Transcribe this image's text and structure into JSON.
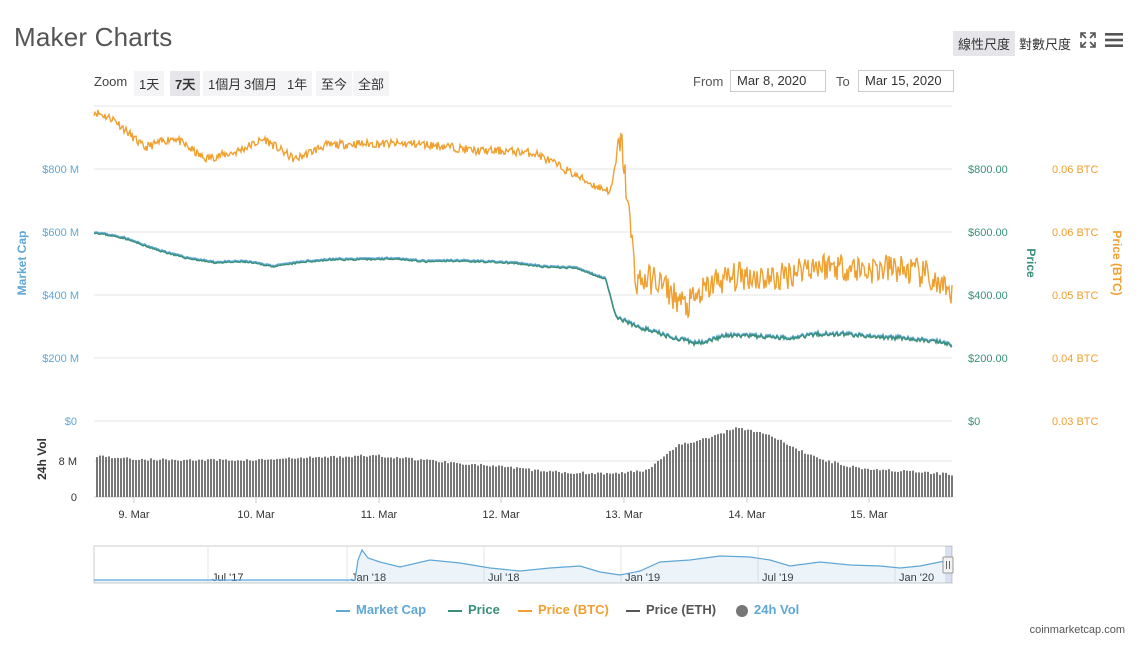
{
  "header": {
    "title": "Maker Charts",
    "scale_linear": "線性尺度",
    "scale_log": "對數尺度",
    "fullscreen_icon": "fullscreen-icon",
    "menu_icon": "hamburger-menu-icon"
  },
  "zoom": {
    "label": "Zoom",
    "buttons": [
      "1天",
      "7天",
      "1個月",
      "3個月",
      "1年",
      "至今",
      "全部"
    ],
    "active": "7天"
  },
  "range": {
    "from_label": "From",
    "from_value": "Mar 8, 2020",
    "to_label": "To",
    "to_value": "Mar 15, 2020"
  },
  "colors": {
    "market_cap": "#5fa7d6",
    "price": "#3a8f79",
    "price_btc": "#f0a030",
    "price_eth": "#555555",
    "volume": "#777777"
  },
  "chart_data": {
    "type": "line",
    "x_axis": {
      "ticks": [
        "9. Mar",
        "10. Mar",
        "11. Mar",
        "12. Mar",
        "13. Mar",
        "14. Mar",
        "15. Mar"
      ],
      "range": [
        "2020-03-08 16:00",
        "2020-03-15 19:00"
      ]
    },
    "y_axes": {
      "market_cap": {
        "title": "Market Cap",
        "ticks": [
          "$200 M",
          "$400 M",
          "$600 M",
          "$800 M"
        ],
        "range": [
          0,
          1000
        ]
      },
      "price": {
        "title": "Price",
        "ticks": [
          "$0",
          "$200.00",
          "$400.00",
          "$600.00",
          "$800.00"
        ],
        "range": [
          0,
          1000
        ]
      },
      "price_btc": {
        "title": "Price (BTC)",
        "ticks": [
          "0.03 BTC",
          "0.04 BTC",
          "0.05 BTC",
          "0.06 BTC",
          "0.06 BTC"
        ],
        "range": [
          0.03,
          0.07
        ]
      },
      "volume": {
        "title": "24h Vol",
        "ticks": [
          "0",
          "8 M",
          "$0"
        ],
        "range": [
          0,
          20
        ]
      }
    },
    "series": [
      {
        "name": "Price",
        "unit": "USD",
        "x": [
          "2020-03-08 16:00",
          "2020-03-08 22:00",
          "2020-03-09 04:00",
          "2020-03-09 10:00",
          "2020-03-09 16:00",
          "2020-03-09 22:00",
          "2020-03-10 04:00",
          "2020-03-10 10:00",
          "2020-03-10 16:00",
          "2020-03-10 22:00",
          "2020-03-11 04:00",
          "2020-03-11 10:00",
          "2020-03-11 16:00",
          "2020-03-11 22:00",
          "2020-03-12 04:00",
          "2020-03-12 10:00",
          "2020-03-12 16:00",
          "2020-03-12 22:00",
          "2020-03-13 00:00",
          "2020-03-13 04:00",
          "2020-03-13 10:00",
          "2020-03-13 16:00",
          "2020-03-13 22:00",
          "2020-03-14 04:00",
          "2020-03-14 10:00",
          "2020-03-14 16:00",
          "2020-03-14 22:00",
          "2020-03-15 04:00",
          "2020-03-15 10:00",
          "2020-03-15 16:00",
          "2020-03-15 19:00"
        ],
        "y": [
          598,
          580,
          545,
          518,
          502,
          505,
          490,
          505,
          512,
          512,
          515,
          505,
          508,
          505,
          500,
          488,
          485,
          450,
          330,
          300,
          270,
          245,
          270,
          268,
          262,
          275,
          275,
          265,
          262,
          250,
          240
        ]
      },
      {
        "name": "Market Cap",
        "unit": "USD M",
        "x": [
          "2020-03-08 16:00",
          "2020-03-08 22:00",
          "2020-03-09 04:00",
          "2020-03-09 10:00",
          "2020-03-09 16:00",
          "2020-03-09 22:00",
          "2020-03-10 04:00",
          "2020-03-10 10:00",
          "2020-03-10 16:00",
          "2020-03-10 22:00",
          "2020-03-11 04:00",
          "2020-03-11 10:00",
          "2020-03-11 16:00",
          "2020-03-11 22:00",
          "2020-03-12 04:00",
          "2020-03-12 10:00",
          "2020-03-12 16:00",
          "2020-03-12 22:00",
          "2020-03-13 00:00",
          "2020-03-13 04:00",
          "2020-03-13 10:00",
          "2020-03-13 16:00",
          "2020-03-13 22:00",
          "2020-03-14 04:00",
          "2020-03-14 10:00",
          "2020-03-14 16:00",
          "2020-03-14 22:00",
          "2020-03-15 04:00",
          "2020-03-15 10:00",
          "2020-03-15 16:00",
          "2020-03-15 19:00"
        ],
        "y": [
          602,
          584,
          549,
          522,
          506,
          509,
          494,
          509,
          516,
          516,
          519,
          509,
          512,
          509,
          504,
          492,
          489,
          454,
          334,
          304,
          274,
          249,
          274,
          272,
          266,
          279,
          279,
          269,
          266,
          254,
          244
        ]
      },
      {
        "name": "Price (BTC)",
        "unit": "BTC",
        "x": [
          "2020-03-08 16:00",
          "2020-03-08 20:00",
          "2020-03-09 02:00",
          "2020-03-09 08:00",
          "2020-03-09 14:00",
          "2020-03-09 20:00",
          "2020-03-10 02:00",
          "2020-03-10 08:00",
          "2020-03-10 14:00",
          "2020-03-10 20:00",
          "2020-03-11 02:00",
          "2020-03-11 08:00",
          "2020-03-11 14:00",
          "2020-03-11 20:00",
          "2020-03-12 02:00",
          "2020-03-12 08:00",
          "2020-03-12 14:00",
          "2020-03-12 20:00",
          "2020-03-12 23:00",
          "2020-03-13 01:00",
          "2020-03-13 04:00",
          "2020-03-13 08:00",
          "2020-03-13 14:00",
          "2020-03-13 20:00",
          "2020-03-14 02:00",
          "2020-03-14 08:00",
          "2020-03-14 14:00",
          "2020-03-14 20:00",
          "2020-03-15 02:00",
          "2020-03-15 08:00",
          "2020-03-15 14:00",
          "2020-03-15 19:00"
        ],
        "y": [
          0.0693,
          0.0683,
          0.0647,
          0.066,
          0.0633,
          0.0641,
          0.0658,
          0.0632,
          0.065,
          0.0652,
          0.0652,
          0.0652,
          0.0649,
          0.0643,
          0.0643,
          0.064,
          0.0619,
          0.0598,
          0.0592,
          0.0662,
          0.0478,
          0.048,
          0.0445,
          0.0478,
          0.0485,
          0.048,
          0.0497,
          0.0497,
          0.0492,
          0.0494,
          0.0485,
          0.0455
        ]
      },
      {
        "name": "Price (ETH)",
        "unit": "",
        "x": [],
        "y": []
      },
      {
        "name": "24h Vol",
        "unit": "USD M",
        "x": [
          "2020-03-08 16:00",
          "2020-03-09 00:00",
          "2020-03-09 12:00",
          "2020-03-10 00:00",
          "2020-03-10 12:00",
          "2020-03-11 00:00",
          "2020-03-11 12:00",
          "2020-03-12 00:00",
          "2020-03-12 12:00",
          "2020-03-13 00:00",
          "2020-03-13 06:00",
          "2020-03-13 12:00",
          "2020-03-13 18:00",
          "2020-03-14 00:00",
          "2020-03-14 06:00",
          "2020-03-14 12:00",
          "2020-03-14 18:00",
          "2020-03-15 00:00",
          "2020-03-15 12:00",
          "2020-03-15 19:00"
        ],
        "y": [
          9.2,
          8.4,
          8.2,
          8.2,
          8.8,
          9.2,
          8.0,
          6.8,
          5.5,
          5.2,
          6.0,
          11.5,
          13.0,
          15.5,
          14.0,
          10.5,
          8.0,
          6.5,
          5.5,
          5.0
        ]
      }
    ],
    "legend": [
      "Market Cap",
      "Price",
      "Price (BTC)",
      "Price (ETH)",
      "24h Vol"
    ],
    "legend_position": "bottom-center",
    "navigator": {
      "ticks": [
        "Jul '17",
        "Jan '18",
        "Jul '18",
        "Jan '19",
        "Jul '19",
        "Jan '20"
      ]
    },
    "grid": true
  },
  "footer": {
    "credit": "coinmarketcap.com"
  }
}
